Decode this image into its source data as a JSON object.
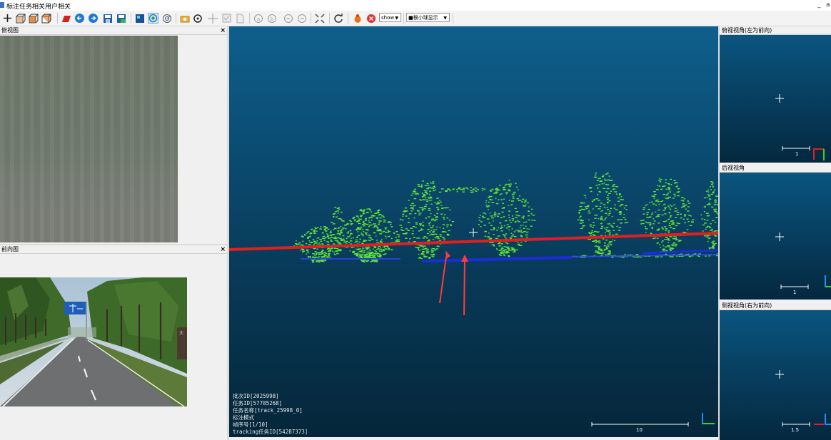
{
  "menu": {
    "items": [
      "标注任务相关",
      "用户相关"
    ],
    "window_controls": [
      "_",
      "a"
    ]
  },
  "toolbar": {
    "icons": [
      "add-icon",
      "cube-front-icon",
      "cube-side-icon",
      "cube-back-icon",
      "red-box-icon",
      "arrow-left-circle-icon",
      "arrow-right-circle-icon",
      "save-icon",
      "save-as-icon",
      "grid-view-icon",
      "target-icon",
      "radar-icon",
      "camera-icon",
      "rotate-icon",
      "crosshair-icon",
      "checkbox-icon",
      "document-icon",
      "nav-prev-icon",
      "nav-next-icon",
      "rotate-left-icon",
      "rotate-right-icon",
      "shrink-icon",
      "refresh-icon",
      "bug-icon",
      "delete-icon"
    ],
    "show_select": "show",
    "mode_select": "■根小球显示"
  },
  "left": {
    "bev_title": "俯视图",
    "front_title": "前向图",
    "bev_title_shown": "俯视图",
    "front_title_shown": "前向图",
    "sign_text": "大"
  },
  "viewer": {
    "info_lines": [
      "批次ID[2025998]",
      "任务ID[57785268]",
      "任务名称[track_25998_0]",
      "标注模式",
      "帧序号[1/10]",
      "tracking任务ID[54287373]"
    ],
    "scale_label": "10"
  },
  "side_views": [
    {
      "title": "俯视视角(左为前向)",
      "scale_label": "1"
    },
    {
      "title": "后视视角",
      "scale_label": "1"
    },
    {
      "title": "侧视视角(右为前向)",
      "scale_label": "1.5"
    }
  ],
  "colors": {
    "points": "#5fe33a",
    "ground": "#1a2ed8",
    "lane_line": "#e02020",
    "arrow": "#ff3b3b"
  }
}
